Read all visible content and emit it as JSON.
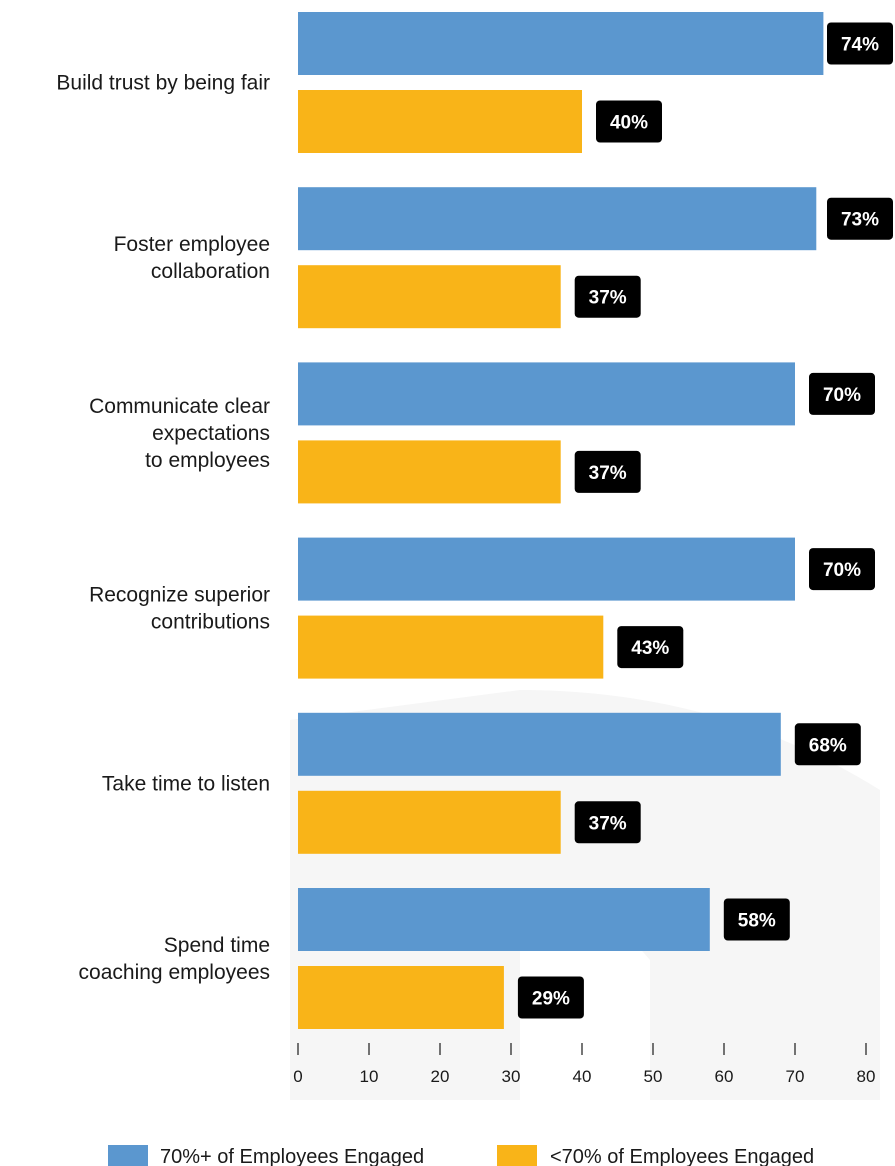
{
  "chart_data": {
    "type": "bar",
    "orientation": "horizontal",
    "categories": [
      [
        "Build trust by being fair"
      ],
      [
        "Foster employee",
        "collaboration"
      ],
      [
        "Communicate clear",
        "expectations",
        "to employees"
      ],
      [
        "Recognize superior",
        "contributions"
      ],
      [
        "Take time to listen"
      ],
      [
        "Spend time",
        "coaching employees"
      ]
    ],
    "series": [
      {
        "name": "70%+ of Employees Engaged",
        "color": "#5b97cf",
        "values": [
          74,
          73,
          70,
          70,
          68,
          58
        ],
        "labels": [
          "74%",
          "73%",
          "70%",
          "70%",
          "68%",
          "58%"
        ]
      },
      {
        "name": "<70% of Employees Engaged",
        "color": "#f9b418",
        "values": [
          40,
          37,
          37,
          43,
          37,
          29
        ],
        "labels": [
          "40%",
          "37%",
          "37%",
          "43%",
          "37%",
          "29%"
        ]
      }
    ],
    "xlim": [
      0,
      80
    ],
    "xticks": [
      0,
      10,
      20,
      30,
      40,
      50,
      60,
      70,
      80
    ],
    "xtick_labels": [
      "0",
      "10",
      "20",
      "30",
      "40",
      "50",
      "60",
      "70",
      "80"
    ],
    "grid": false,
    "legend_position": "bottom"
  }
}
